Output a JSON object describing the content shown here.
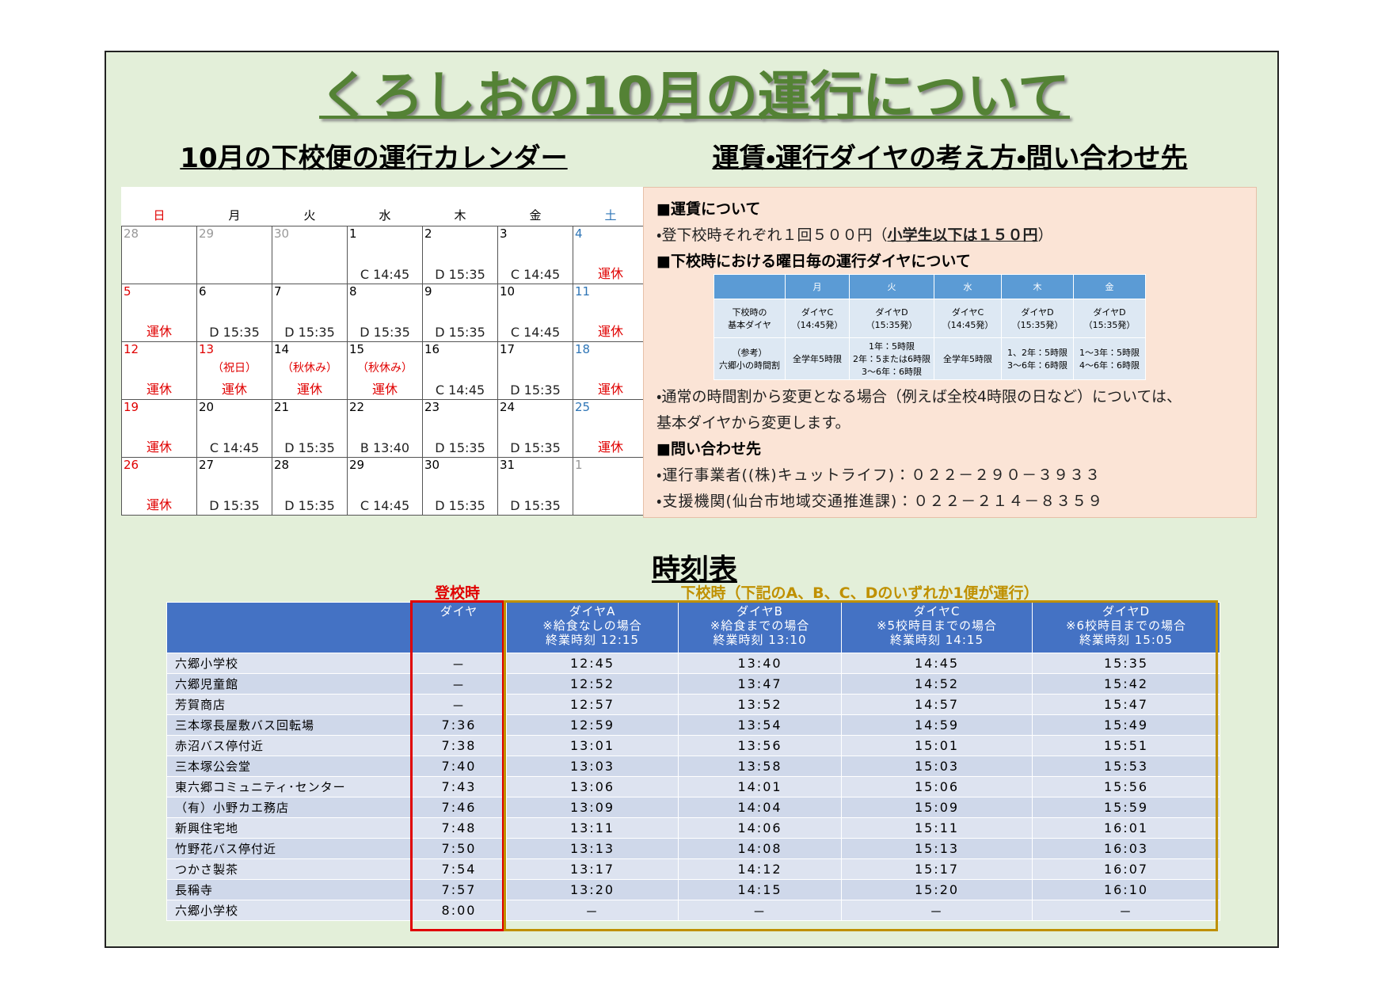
{
  "header": {
    "title": "くろしおの10月の運行について"
  },
  "calendar": {
    "title": "10月の下校便の運行カレンダー",
    "weekdays": [
      "日",
      "月",
      "火",
      "水",
      "木",
      "金",
      "土"
    ],
    "weekday_colors": [
      "#e00000",
      "#000000",
      "#000000",
      "#000000",
      "#000000",
      "#000000",
      "#2e75b6"
    ],
    "weeks": [
      [
        {
          "day": "28",
          "day_color": "#999999"
        },
        {
          "day": "29",
          "day_color": "#999999"
        },
        {
          "day": "30",
          "day_color": "#999999"
        },
        {
          "day": "1",
          "service": "C 14:45"
        },
        {
          "day": "2",
          "service": "D 15:35"
        },
        {
          "day": "3",
          "service": "C 14:45"
        },
        {
          "day": "4",
          "service": "運休",
          "service_color": "#e00000"
        }
      ],
      [
        {
          "day": "5",
          "service": "運休",
          "service_color": "#e00000"
        },
        {
          "day": "6",
          "service": "D 15:35"
        },
        {
          "day": "7",
          "service": "D 15:35"
        },
        {
          "day": "8",
          "service": "D 15:35"
        },
        {
          "day": "9",
          "service": "D 15:35"
        },
        {
          "day": "10",
          "service": "C 14:45"
        },
        {
          "day": "11",
          "service": "運休",
          "service_color": "#e00000"
        }
      ],
      [
        {
          "day": "12",
          "service": "運休",
          "service_color": "#e00000"
        },
        {
          "day": "13",
          "day_color": "#e00000",
          "note": "（祝日）",
          "service": "運休",
          "service_color": "#e00000"
        },
        {
          "day": "14",
          "note": "（秋休み）",
          "service": "運休",
          "service_color": "#e00000"
        },
        {
          "day": "15",
          "note": "（秋休み）",
          "service": "運休",
          "service_color": "#e00000"
        },
        {
          "day": "16",
          "service": "C 14:45"
        },
        {
          "day": "17",
          "service": "D 15:35"
        },
        {
          "day": "18",
          "service": "運休",
          "service_color": "#e00000"
        }
      ],
      [
        {
          "day": "19",
          "service": "運休",
          "service_color": "#e00000"
        },
        {
          "day": "20",
          "service": "C 14:45"
        },
        {
          "day": "21",
          "service": "D 15:35"
        },
        {
          "day": "22",
          "service": "B 13:40"
        },
        {
          "day": "23",
          "service": "D 15:35"
        },
        {
          "day": "24",
          "service": "D 15:35"
        },
        {
          "day": "25",
          "service": "運休",
          "service_color": "#e00000"
        }
      ],
      [
        {
          "day": "26",
          "service": "運休",
          "service_color": "#e00000"
        },
        {
          "day": "27",
          "service": "D 15:35"
        },
        {
          "day": "28",
          "service": "D 15:35"
        },
        {
          "day": "29",
          "service": "C 14:45"
        },
        {
          "day": "30",
          "service": "D 15:35"
        },
        {
          "day": "31",
          "service": "D 15:35"
        },
        {
          "day": "1",
          "day_color": "#999999"
        }
      ]
    ]
  },
  "info": {
    "title": "運賃・運行ダイヤの考え方・問い合わせ先",
    "fare_heading": "■運賃について",
    "fare_text": [
      {
        "text": "・登下校時それぞれ１回５００円（"
      },
      {
        "text": "小学生以下は１５０円",
        "underline": true
      },
      {
        "text": "）"
      }
    ],
    "schedule_heading": "■下校時における曜日毎の運行ダイヤについて",
    "schedule_table": {
      "header": [
        "月",
        "火",
        "水",
        "木",
        "金"
      ],
      "rows": [
        {
          "label": "下校時の\n基本ダイヤ",
          "cells": [
            "ダイヤC\n（14:45発）",
            "ダイヤD\n（15:35発）",
            "ダイヤC\n（14:45発）",
            "ダイヤD\n（15:35発）",
            "ダイヤD\n（15:35発）"
          ]
        },
        {
          "label": "（参考）\n六郷小の時間割",
          "cells": [
            "全学年5時限",
            "1年：5時限\n2年：5または6時限\n3～6年：6時限",
            "全学年5時限",
            "1、2年：5時限\n3～6年：6時限",
            "1～3年：5時限\n4～6年：6時限"
          ]
        }
      ]
    },
    "notes": [
      "・通常の時間割から変更となる場合（例えば全校4時限の日など）については、",
      "基本ダイヤから変更します。"
    ],
    "contact_heading": "■問い合わせ先",
    "contacts": [
      "・運行事業者((株)キュットライフ)：０２２－２９０－３９３３",
      "・支援機関(仙台市地域交通推進課)：０２２－２１４－８３５９"
    ]
  },
  "timetable": {
    "title": "時刻表",
    "label_up": "登校時",
    "label_down": "下校時（下記のA、B、C、Dのいずれか1便が運行）",
    "headers": [
      "ダイヤ",
      "ダイヤA\n※給食なしの場合\n終業時刻 12:15",
      "ダイヤB\n※給食までの場合\n終業時刻 13:10",
      "ダイヤC\n※5校時目までの場合\n終業時刻 14:15",
      "ダイヤD\n※6校時目までの場合\n終業時刻 15:05"
    ],
    "rows": [
      {
        "stop": "六郷小学校",
        "times": [
          "－",
          "12:45",
          "13:40",
          "14:45",
          "15:35"
        ]
      },
      {
        "stop": "六郷児童館",
        "times": [
          "－",
          "12:52",
          "13:47",
          "14:52",
          "15:42"
        ]
      },
      {
        "stop": "芳賀商店",
        "times": [
          "－",
          "12:57",
          "13:52",
          "14:57",
          "15:47"
        ]
      },
      {
        "stop": "三本塚長屋敷バス回転場",
        "times": [
          "7:36",
          "12:59",
          "13:54",
          "14:59",
          "15:49"
        ]
      },
      {
        "stop": "赤沼バス停付近",
        "times": [
          "7:38",
          "13:01",
          "13:56",
          "15:01",
          "15:51"
        ]
      },
      {
        "stop": "三本塚公会堂",
        "times": [
          "7:40",
          "13:03",
          "13:58",
          "15:03",
          "15:53"
        ]
      },
      {
        "stop": "東六郷コミュニティ･センター",
        "times": [
          "7:43",
          "13:06",
          "14:01",
          "15:06",
          "15:56"
        ]
      },
      {
        "stop": "（有）小野カエ務店",
        "times": [
          "7:46",
          "13:09",
          "14:04",
          "15:09",
          "15:59"
        ]
      },
      {
        "stop": "新興住宅地",
        "times": [
          "7:48",
          "13:11",
          "14:06",
          "15:11",
          "16:01"
        ]
      },
      {
        "stop": "竹野花バス停付近",
        "times": [
          "7:50",
          "13:13",
          "14:08",
          "15:13",
          "16:03"
        ]
      },
      {
        "stop": "つかさ製茶",
        "times": [
          "7:54",
          "13:17",
          "14:12",
          "15:17",
          "16:07"
        ]
      },
      {
        "stop": "長稱寺",
        "times": [
          "7:57",
          "13:20",
          "14:15",
          "15:20",
          "16:10"
        ]
      },
      {
        "stop": "六郷小学校",
        "times": [
          "8:00",
          "－",
          "－",
          "－",
          "－"
        ]
      }
    ]
  }
}
